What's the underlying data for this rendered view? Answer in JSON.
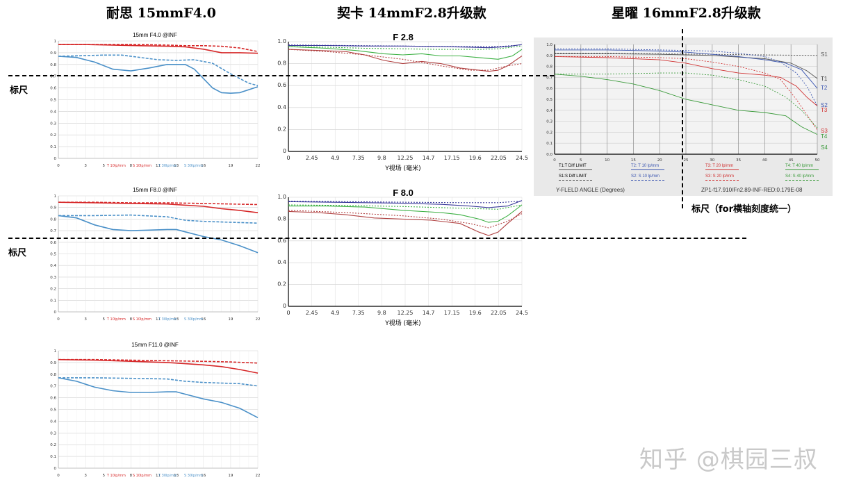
{
  "headers": {
    "col1": "耐思 15mmF4.0",
    "col2": "契卡 14mmF2.8升级款",
    "col3": "星曜 16mmF2.8升级款"
  },
  "rulers": {
    "label": "标尺",
    "label_right": "标尺（for横轴刻度统一）"
  },
  "watermark": "知乎 @棋园三叔",
  "colors": {
    "red": "#d62728",
    "blue": "#4a90c8",
    "green": "#3cb043",
    "navy": "#3a3a9a",
    "maroon": "#b04040"
  },
  "chart_data": [
    {
      "type": "line",
      "title": "15mm F4.0 @INF",
      "x_ticks": [
        0,
        3,
        5,
        8,
        11,
        13,
        16,
        19,
        22
      ],
      "xlim": [
        0,
        22
      ],
      "ylim": [
        0,
        1
      ],
      "y_ticks": [
        "0",
        "0.1",
        "0.2",
        "0.3",
        "0.4",
        "0.5",
        "0.6",
        "0.7",
        "0.8",
        "0.9",
        "1"
      ],
      "legend": [
        "T 10lp/mm",
        "S 10lp/mm",
        "T 30lp/mm",
        "S 30lp/mm"
      ],
      "series": [
        {
          "name": "T 10lp/mm",
          "color": "red",
          "dash": false,
          "x": [
            0,
            3,
            6,
            9,
            12,
            14,
            16,
            18,
            20,
            22
          ],
          "y": [
            0.97,
            0.97,
            0.965,
            0.96,
            0.955,
            0.95,
            0.93,
            0.9,
            0.9,
            0.895
          ]
        },
        {
          "name": "S 10lp/mm",
          "color": "red",
          "dash": true,
          "x": [
            0,
            3,
            6,
            9,
            12,
            14,
            16,
            18,
            20,
            22
          ],
          "y": [
            0.97,
            0.97,
            0.97,
            0.97,
            0.965,
            0.96,
            0.96,
            0.955,
            0.94,
            0.91
          ]
        },
        {
          "name": "T 30lp/mm",
          "color": "blue",
          "dash": false,
          "x": [
            0,
            2,
            4,
            6,
            8,
            10,
            12,
            14,
            15,
            16,
            17,
            18,
            19,
            20,
            22
          ],
          "y": [
            0.87,
            0.86,
            0.82,
            0.76,
            0.745,
            0.77,
            0.8,
            0.8,
            0.76,
            0.68,
            0.6,
            0.56,
            0.555,
            0.56,
            0.61
          ]
        },
        {
          "name": "S 30lp/mm",
          "color": "blue",
          "dash": true,
          "x": [
            0,
            3,
            5,
            7,
            9,
            11,
            13,
            15,
            17,
            19,
            21,
            22
          ],
          "y": [
            0.87,
            0.875,
            0.88,
            0.88,
            0.86,
            0.84,
            0.835,
            0.84,
            0.81,
            0.72,
            0.64,
            0.62
          ]
        }
      ]
    },
    {
      "type": "line",
      "title": "15mm F8.0 @INF",
      "x_ticks": [
        0,
        3,
        5,
        8,
        11,
        13,
        16,
        19,
        22
      ],
      "xlim": [
        0,
        22
      ],
      "ylim": [
        0,
        1
      ],
      "y_ticks": [
        "0",
        "0.1",
        "0.2",
        "0.3",
        "0.4",
        "0.5",
        "0.6",
        "0.7",
        "0.8",
        "0.9",
        "1"
      ],
      "legend": [
        "T 10lp/mm",
        "S 10lp/mm",
        "T 30lp/mm",
        "S 30lp/mm"
      ],
      "series": [
        {
          "name": "T 10lp/mm",
          "color": "red",
          "dash": false,
          "x": [
            0,
            4,
            8,
            12,
            14,
            16,
            18,
            20,
            22
          ],
          "y": [
            0.945,
            0.94,
            0.935,
            0.93,
            0.92,
            0.91,
            0.89,
            0.875,
            0.855
          ]
        },
        {
          "name": "S 10lp/mm",
          "color": "red",
          "dash": true,
          "x": [
            0,
            4,
            8,
            12,
            16,
            19,
            22
          ],
          "y": [
            0.945,
            0.945,
            0.94,
            0.94,
            0.935,
            0.93,
            0.925
          ]
        },
        {
          "name": "T 30lp/mm",
          "color": "blue",
          "dash": false,
          "x": [
            0,
            2,
            4,
            6,
            8,
            10,
            12,
            13,
            14,
            16,
            18,
            20,
            22
          ],
          "y": [
            0.83,
            0.81,
            0.75,
            0.71,
            0.7,
            0.705,
            0.71,
            0.71,
            0.69,
            0.65,
            0.62,
            0.57,
            0.51
          ]
        },
        {
          "name": "S 30lp/mm",
          "color": "blue",
          "dash": true,
          "x": [
            0,
            4,
            8,
            12,
            14,
            16,
            18,
            20,
            22
          ],
          "y": [
            0.83,
            0.83,
            0.835,
            0.82,
            0.79,
            0.78,
            0.775,
            0.77,
            0.765
          ]
        }
      ]
    },
    {
      "type": "line",
      "title": "15mm F11.0 @INF",
      "x_ticks": [
        0,
        3,
        5,
        8,
        11,
        13,
        16,
        19,
        22
      ],
      "xlim": [
        0,
        22
      ],
      "ylim": [
        0,
        1
      ],
      "y_ticks": [
        "0",
        "0.1",
        "0.2",
        "0.3",
        "0.4",
        "0.5",
        "0.6",
        "0.7",
        "0.8",
        "0.9",
        "1"
      ],
      "legend": [
        "T 10lp/mm",
        "S 10lp/mm",
        "T 30lp/mm",
        "S 30lp/mm"
      ],
      "series": [
        {
          "name": "T 10lp/mm",
          "color": "red",
          "dash": false,
          "x": [
            0,
            4,
            8,
            12,
            14,
            16,
            18,
            20,
            22
          ],
          "y": [
            0.925,
            0.92,
            0.91,
            0.9,
            0.89,
            0.88,
            0.865,
            0.84,
            0.81
          ]
        },
        {
          "name": "S 10lp/mm",
          "color": "red",
          "dash": true,
          "x": [
            0,
            4,
            8,
            12,
            16,
            19,
            22
          ],
          "y": [
            0.925,
            0.925,
            0.92,
            0.915,
            0.91,
            0.905,
            0.895
          ]
        },
        {
          "name": "T 30lp/mm",
          "color": "blue",
          "dash": false,
          "x": [
            0,
            2,
            4,
            6,
            8,
            10,
            12,
            13,
            14,
            16,
            18,
            20,
            22
          ],
          "y": [
            0.77,
            0.74,
            0.69,
            0.66,
            0.645,
            0.645,
            0.65,
            0.65,
            0.63,
            0.59,
            0.56,
            0.51,
            0.43
          ]
        },
        {
          "name": "S 30lp/mm",
          "color": "blue",
          "dash": true,
          "x": [
            0,
            4,
            8,
            12,
            14,
            16,
            18,
            20,
            22
          ],
          "y": [
            0.77,
            0.77,
            0.765,
            0.76,
            0.74,
            0.73,
            0.725,
            0.72,
            0.7
          ]
        }
      ]
    },
    {
      "type": "line",
      "title": "F 2.8",
      "xlabel": "Y视场 (毫米)",
      "x_ticks": [
        "0",
        "2.45",
        "4.9",
        "7.35",
        "9.8",
        "12.25",
        "14.7",
        "17.15",
        "19.6",
        "22.05",
        "24.5"
      ],
      "y_ticks": [
        "0",
        "0.2",
        "0.4",
        "0.6",
        "0.8",
        "1.0"
      ],
      "xlim": [
        0,
        24.5
      ],
      "ylim": [
        0,
        1
      ],
      "series": [
        {
          "color": "navy",
          "dash": false,
          "x": [
            0,
            4,
            8,
            12,
            16,
            19,
            21,
            23,
            24.5
          ],
          "y": [
            0.965,
            0.965,
            0.96,
            0.96,
            0.955,
            0.95,
            0.945,
            0.955,
            0.975
          ]
        },
        {
          "color": "navy",
          "dash": true,
          "x": [
            0,
            6,
            12,
            18,
            22,
            24.5
          ],
          "y": [
            0.97,
            0.965,
            0.96,
            0.955,
            0.955,
            0.97
          ]
        },
        {
          "color": "green",
          "dash": false,
          "x": [
            0,
            4,
            7,
            10,
            12,
            14,
            16,
            18,
            20,
            22,
            23.5,
            24.5
          ],
          "y": [
            0.955,
            0.94,
            0.92,
            0.89,
            0.88,
            0.89,
            0.87,
            0.87,
            0.855,
            0.84,
            0.87,
            0.93
          ]
        },
        {
          "color": "green",
          "dash": true,
          "x": [
            0,
            4,
            8,
            12,
            16,
            20,
            22,
            24.5
          ],
          "y": [
            0.955,
            0.95,
            0.94,
            0.935,
            0.93,
            0.93,
            0.935,
            0.96
          ]
        },
        {
          "color": "maroon",
          "dash": false,
          "x": [
            0,
            3,
            6,
            8,
            10,
            12,
            14,
            16,
            18,
            20,
            21,
            22,
            23,
            24.5
          ],
          "y": [
            0.93,
            0.92,
            0.91,
            0.88,
            0.83,
            0.8,
            0.82,
            0.8,
            0.76,
            0.74,
            0.73,
            0.74,
            0.78,
            0.87
          ]
        },
        {
          "color": "maroon",
          "dash": true,
          "x": [
            0,
            4,
            8,
            12,
            16,
            19,
            21,
            23,
            24.5
          ],
          "y": [
            0.93,
            0.91,
            0.88,
            0.84,
            0.78,
            0.74,
            0.74,
            0.78,
            0.8
          ]
        }
      ]
    },
    {
      "type": "line",
      "title": "F 8.0",
      "xlabel": "Y视场 (毫米)",
      "x_ticks": [
        "0",
        "2.45",
        "4.9",
        "7.35",
        "9.8",
        "12.25",
        "14.7",
        "17.15",
        "19.6",
        "22.05",
        "24.5"
      ],
      "y_ticks": [
        "0",
        "0.2",
        "0.4",
        "0.6",
        "0.8",
        "1.0"
      ],
      "xlim": [
        0,
        24.5
      ],
      "ylim": [
        0,
        1
      ],
      "series": [
        {
          "color": "navy",
          "dash": false,
          "x": [
            0,
            4,
            8,
            12,
            16,
            19,
            21,
            23,
            24.5
          ],
          "y": [
            0.96,
            0.955,
            0.95,
            0.945,
            0.935,
            0.92,
            0.905,
            0.92,
            0.97
          ]
        },
        {
          "color": "navy",
          "dash": true,
          "x": [
            0,
            6,
            12,
            18,
            22,
            24.5
          ],
          "y": [
            0.965,
            0.96,
            0.955,
            0.95,
            0.95,
            0.965
          ]
        },
        {
          "color": "green",
          "dash": false,
          "x": [
            0,
            4,
            8,
            12,
            16,
            18,
            20,
            21,
            22,
            23,
            24.5
          ],
          "y": [
            0.92,
            0.92,
            0.91,
            0.88,
            0.86,
            0.84,
            0.8,
            0.77,
            0.78,
            0.83,
            0.93
          ]
        },
        {
          "color": "green",
          "dash": true,
          "x": [
            0,
            6,
            12,
            18,
            22,
            24.5
          ],
          "y": [
            0.93,
            0.925,
            0.915,
            0.9,
            0.89,
            0.93
          ]
        },
        {
          "color": "maroon",
          "dash": false,
          "x": [
            0,
            3,
            6,
            9,
            12,
            15,
            18,
            20,
            21,
            22,
            23,
            24.5
          ],
          "y": [
            0.87,
            0.86,
            0.84,
            0.81,
            0.8,
            0.79,
            0.76,
            0.68,
            0.65,
            0.68,
            0.76,
            0.87
          ]
        },
        {
          "color": "maroon",
          "dash": true,
          "x": [
            0,
            6,
            12,
            16,
            19,
            21,
            23,
            24.5
          ],
          "y": [
            0.88,
            0.86,
            0.83,
            0.8,
            0.76,
            0.72,
            0.78,
            0.85
          ]
        }
      ]
    },
    {
      "type": "line",
      "xlabel": "Y-FLELD ANGLE (Degrees)",
      "x_ticks": [
        0,
        5,
        10,
        15,
        20,
        25,
        30,
        35,
        40,
        45,
        50
      ],
      "y_ticks": [
        "0.0",
        "0.1",
        "0.2",
        "0.3",
        "0.4",
        "0.5",
        "0.6",
        "0.7",
        "0.8",
        "0.9",
        "1.0"
      ],
      "xlim": [
        0,
        50
      ],
      "ylim": [
        0,
        1
      ],
      "footer": "ZP1-f17.910/Fn2.89-INF-RED:0.179E-08",
      "legend": [
        "T1:T Diff LIMIT",
        "S1:S Diff LIMIT",
        "T2: T 10 lp/mm",
        "S2: S 10 lp/mm",
        "T3: T 20 lp/mm",
        "S3: S 20 lp/mm",
        "T4: T 40 lp/mm",
        "S4: S 40 lp/mm"
      ],
      "side_labels": [
        "S1",
        "T1",
        "T2",
        "S2",
        "T3",
        "S3",
        "T4",
        "S4"
      ],
      "series": [
        {
          "name": "T1:T Diff LIMIT",
          "color": "#555555",
          "dash": false,
          "x": [
            0,
            10,
            20,
            30,
            40,
            45,
            48,
            50
          ],
          "y": [
            0.915,
            0.915,
            0.91,
            0.9,
            0.87,
            0.83,
            0.76,
            0.69
          ]
        },
        {
          "name": "S1:S Diff LIMIT",
          "color": "#555555",
          "dash": true,
          "x": [
            0,
            10,
            20,
            30,
            40,
            50
          ],
          "y": [
            0.92,
            0.92,
            0.915,
            0.91,
            0.905,
            0.9
          ]
        },
        {
          "name": "T2: T 10 lp/mm",
          "color": "#3a55b0",
          "dash": false,
          "x": [
            0,
            10,
            20,
            25,
            30,
            35,
            40,
            44,
            47,
            50
          ],
          "y": [
            0.95,
            0.95,
            0.94,
            0.93,
            0.91,
            0.89,
            0.86,
            0.83,
            0.77,
            0.6
          ]
        },
        {
          "name": "S2: S 10 lp/mm",
          "color": "#3a55b0",
          "dash": true,
          "x": [
            0,
            10,
            20,
            30,
            35,
            40,
            43,
            46,
            48,
            50
          ],
          "y": [
            0.96,
            0.96,
            0.95,
            0.94,
            0.92,
            0.89,
            0.84,
            0.74,
            0.62,
            0.44
          ]
        },
        {
          "name": "T3: T 20 lp/mm",
          "color": "#d03030",
          "dash": false,
          "x": [
            0,
            10,
            20,
            25,
            30,
            35,
            40,
            43,
            46,
            48,
            50
          ],
          "y": [
            0.89,
            0.88,
            0.86,
            0.83,
            0.78,
            0.74,
            0.72,
            0.7,
            0.62,
            0.52,
            0.44
          ]
        },
        {
          "name": "S3: S 20 lp/mm",
          "color": "#d03030",
          "dash": true,
          "x": [
            0,
            10,
            20,
            25,
            30,
            35,
            40,
            43,
            46,
            48,
            50
          ],
          "y": [
            0.89,
            0.89,
            0.88,
            0.87,
            0.84,
            0.8,
            0.74,
            0.68,
            0.5,
            0.36,
            0.22
          ]
        },
        {
          "name": "T4: T 40 lp/mm",
          "color": "#3a9a3a",
          "dash": false,
          "x": [
            0,
            5,
            10,
            15,
            20,
            25,
            30,
            35,
            40,
            44,
            47,
            50
          ],
          "y": [
            0.73,
            0.71,
            0.68,
            0.64,
            0.58,
            0.5,
            0.45,
            0.4,
            0.38,
            0.35,
            0.25,
            0.18
          ]
        },
        {
          "name": "S4: S 40 lp/mm",
          "color": "#3a9a3a",
          "dash": true,
          "x": [
            0,
            10,
            20,
            25,
            30,
            35,
            40,
            44,
            47,
            50
          ],
          "y": [
            0.73,
            0.73,
            0.74,
            0.74,
            0.72,
            0.68,
            0.62,
            0.52,
            0.4,
            0.24
          ]
        }
      ]
    }
  ]
}
